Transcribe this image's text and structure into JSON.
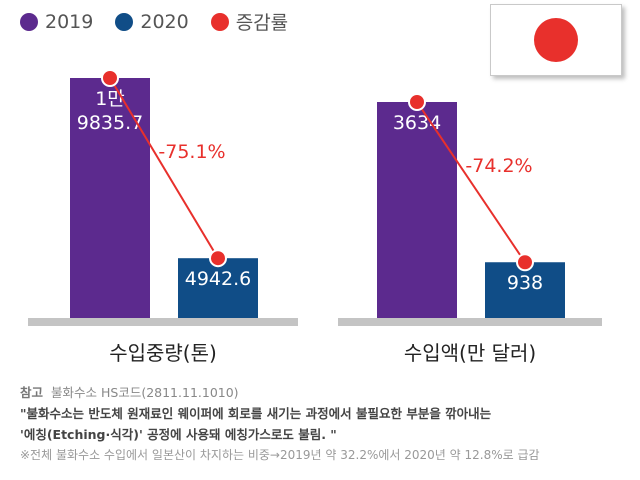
{
  "legend": [
    {
      "label": "2019",
      "color": "#5c2a8e"
    },
    {
      "label": "2020",
      "color": "#104d87"
    },
    {
      "label": "증감률",
      "color": "#e8302c"
    }
  ],
  "chart_data": [
    {
      "type": "bar",
      "xlabel": "수입중량(톤)",
      "categories": [
        "2019",
        "2020"
      ],
      "values": [
        19835.7,
        4942.6
      ],
      "value_labels": [
        "1만\n9835.7",
        "4942.6"
      ],
      "change_label": "-75.1%"
    },
    {
      "type": "bar",
      "xlabel": "수입액(만 달러)",
      "categories": [
        "2019",
        "2020"
      ],
      "values": [
        3634,
        938
      ],
      "value_labels": [
        "3634",
        "938"
      ],
      "change_label": "-74.2%"
    }
  ],
  "notes": {
    "ref_label": "참고",
    "ref_text": "불화수소 HS코드(2811.11.1010)",
    "quote_line1": "\"불화수소는 반도체 원재료인 웨이퍼에 회로를 새기는 과정에서 불필요한 부분을 깎아내는",
    "quote_line2": "'에칭(Etching·식각)' 공정에 사용돼 에칭가스로도 불림. \"",
    "footnote": "※전체 불화수소 수입에서 일본산이 차지하는 비중→2019년 약 32.2%에서 2020년 약 12.8%로 급감"
  }
}
